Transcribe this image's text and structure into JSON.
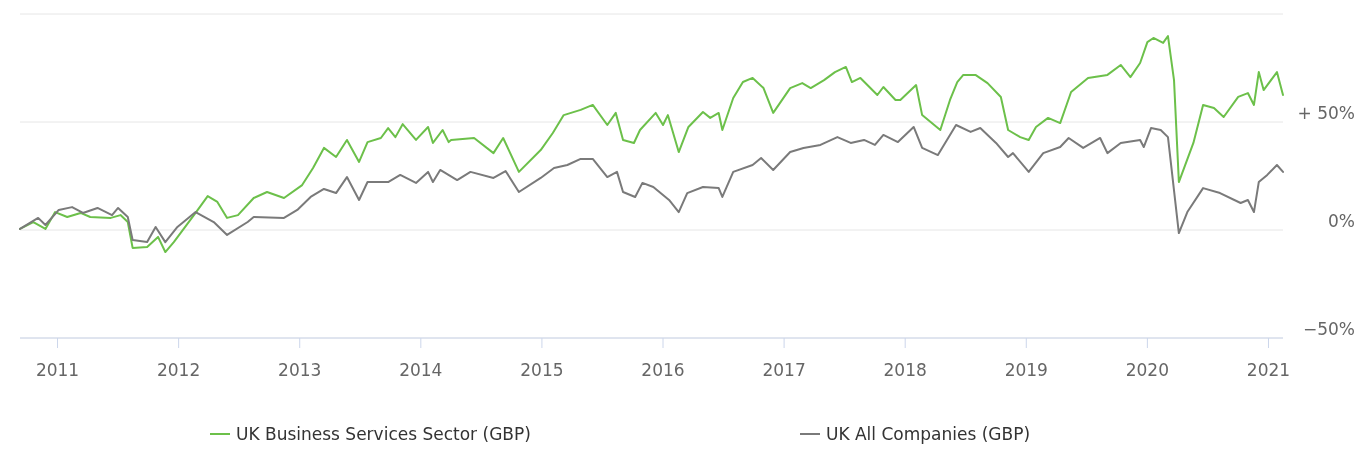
{
  "chart_data": {
    "type": "line",
    "xlim": [
      2010.69,
      2021.12
    ],
    "xticks": [
      2011,
      2012,
      2013,
      2014,
      2015,
      2016,
      2017,
      2018,
      2019,
      2020,
      2021
    ],
    "ylim": [
      -50,
      100
    ],
    "yticks": [
      {
        "value": -50,
        "label": "−50%"
      },
      {
        "value": 0,
        "label": "0%"
      },
      {
        "value": 50,
        "label": "+ 50%"
      },
      {
        "value": 100,
        "label": null
      }
    ],
    "grid": "y",
    "legend": "bottom",
    "marker": "none",
    "line_style": "solid",
    "series": [
      {
        "name": "UK Business Services Sector (GBP)",
        "color": "#6cc04a",
        "x": [
          2010.69,
          2010.8,
          2010.9,
          2010.98,
          2011.08,
          2011.19,
          2011.27,
          2011.44,
          2011.52,
          2011.58,
          2011.62,
          2011.74,
          2011.83,
          2011.89,
          2011.96,
          2012.14,
          2012.24,
          2012.32,
          2012.4,
          2012.49,
          2012.62,
          2012.73,
          2012.87,
          2013.02,
          2013.11,
          2013.2,
          2013.3,
          2013.39,
          2013.49,
          2013.56,
          2013.67,
          2013.73,
          2013.79,
          2013.85,
          2013.96,
          2014.06,
          2014.1,
          2014.18,
          2014.23,
          2014.25,
          2014.44,
          2014.6,
          2014.68,
          2014.81,
          2014.99,
          2015.09,
          2015.18,
          2015.32,
          2015.42,
          2015.54,
          2015.61,
          2015.67,
          2015.76,
          2015.81,
          2015.94,
          2016.0,
          2016.04,
          2016.13,
          2016.21,
          2016.33,
          2016.39,
          2016.46,
          2016.49,
          2016.58,
          2016.66,
          2016.74,
          2016.83,
          2016.91,
          2017.05,
          2017.15,
          2017.22,
          2017.33,
          2017.42,
          2017.51,
          2017.56,
          2017.63,
          2017.77,
          2017.82,
          2017.92,
          2017.96,
          2018.09,
          2018.14,
          2018.29,
          2018.37,
          2018.43,
          2018.48,
          2018.58,
          2018.68,
          2018.79,
          2018.85,
          2018.95,
          2019.02,
          2019.08,
          2019.18,
          2019.28,
          2019.37,
          2019.51,
          2019.67,
          2019.78,
          2019.86,
          2019.94,
          2020.0,
          2020.05,
          2020.13,
          2020.17,
          2020.22,
          2020.26,
          2020.38,
          2020.46,
          2020.55,
          2020.63,
          2020.75,
          2020.83,
          2020.88,
          2020.92,
          2020.96,
          2021.07,
          2021.12
        ],
        "values": [
          0.5,
          3.7,
          0.5,
          8.3,
          6,
          7.9,
          6,
          5.6,
          6.9,
          3.7,
          -8.3,
          -7.9,
          -3.2,
          -10.2,
          -5.6,
          7.9,
          15.7,
          13,
          5.6,
          6.9,
          14.8,
          17.6,
          14.8,
          20.8,
          28.7,
          38,
          33.8,
          41.7,
          31.5,
          40.7,
          42.6,
          47.2,
          43,
          49,
          41.7,
          47.7,
          40.3,
          46.3,
          40.7,
          41.7,
          42.6,
          35.6,
          42.6,
          26.9,
          37,
          44.9,
          53.2,
          55.6,
          57.9,
          48.6,
          54.2,
          41.7,
          40.3,
          46.3,
          54.2,
          48.6,
          53.2,
          36.1,
          47.7,
          54.6,
          51.9,
          54.2,
          46.3,
          61.1,
          68.5,
          70.4,
          65.7,
          54.2,
          65.7,
          68,
          65.7,
          69.4,
          73.1,
          75.5,
          68.5,
          70.4,
          62.5,
          66.2,
          60.2,
          60.2,
          67.1,
          53.2,
          46.3,
          60.2,
          68.5,
          71.8,
          71.8,
          68,
          61.6,
          46.3,
          43,
          41.7,
          47.7,
          51.9,
          49.5,
          63.9,
          70.4,
          71.8,
          76.4,
          70.8,
          77.3,
          87,
          88.9,
          86.6,
          89.8,
          69.4,
          22.2,
          40.3,
          57.9,
          56.5,
          52.3,
          61.6,
          63.4,
          57.9,
          73.1,
          64.8,
          73.1,
          62.5
        ]
      },
      {
        "name": "UK All Companies (GBP)",
        "color": "#7a7a7a",
        "x": [
          2010.69,
          2010.84,
          2010.9,
          2011.01,
          2011.12,
          2011.21,
          2011.33,
          2011.45,
          2011.5,
          2011.58,
          2011.62,
          2011.74,
          2011.81,
          2011.89,
          2011.99,
          2012.14,
          2012.29,
          2012.4,
          2012.57,
          2012.62,
          2012.87,
          2012.98,
          2013.09,
          2013.2,
          2013.3,
          2013.39,
          2013.49,
          2013.56,
          2013.73,
          2013.83,
          2013.96,
          2014.06,
          2014.1,
          2014.16,
          2014.3,
          2014.41,
          2014.6,
          2014.7,
          2014.81,
          2014.99,
          2015.1,
          2015.21,
          2015.32,
          2015.42,
          2015.54,
          2015.62,
          2015.67,
          2015.77,
          2015.83,
          2015.92,
          2016.05,
          2016.13,
          2016.2,
          2016.33,
          2016.46,
          2016.49,
          2016.58,
          2016.74,
          2016.81,
          2016.91,
          2017.05,
          2017.16,
          2017.3,
          2017.44,
          2017.55,
          2017.66,
          2017.75,
          2017.82,
          2017.94,
          2018.07,
          2018.14,
          2018.27,
          2018.42,
          2018.54,
          2018.62,
          2018.75,
          2018.85,
          2018.89,
          2019.02,
          2019.14,
          2019.28,
          2019.35,
          2019.47,
          2019.61,
          2019.67,
          2019.78,
          2019.94,
          2019.97,
          2020.03,
          2020.11,
          2020.17,
          2020.26,
          2020.33,
          2020.46,
          2020.6,
          2020.77,
          2020.83,
          2020.88,
          2020.92,
          2020.99,
          2021.07,
          2021.12
        ],
        "values": [
          0.5,
          5.6,
          2.3,
          9.3,
          10.6,
          7.9,
          10.2,
          6.9,
          10.2,
          6,
          -4.6,
          -5.6,
          1.4,
          -5.6,
          1.4,
          8.3,
          3.7,
          -2.3,
          3.7,
          6,
          5.6,
          9.3,
          15.3,
          19,
          17.1,
          24.5,
          13.9,
          22.2,
          22.2,
          25.5,
          21.8,
          26.9,
          22.2,
          27.8,
          23.1,
          26.9,
          24.1,
          27.3,
          17.6,
          24.1,
          28.7,
          30.1,
          32.9,
          32.9,
          24.5,
          26.9,
          17.6,
          15.3,
          21.8,
          19.9,
          13.9,
          8.3,
          17.1,
          19.9,
          19.4,
          15.3,
          26.9,
          30.1,
          33.3,
          27.8,
          36.1,
          38,
          39.4,
          43,
          40.3,
          41.7,
          39.4,
          44,
          40.7,
          47.7,
          38,
          34.7,
          48.6,
          45.4,
          47.2,
          40.3,
          33.8,
          35.6,
          26.9,
          35.6,
          38.4,
          42.6,
          38,
          42.6,
          35.6,
          40.3,
          41.7,
          38.4,
          47.2,
          46.3,
          43,
          -1.4,
          8.3,
          19.4,
          17.1,
          12.5,
          13.9,
          8.3,
          22.2,
          25.5,
          30.1,
          26.9
        ]
      }
    ]
  }
}
